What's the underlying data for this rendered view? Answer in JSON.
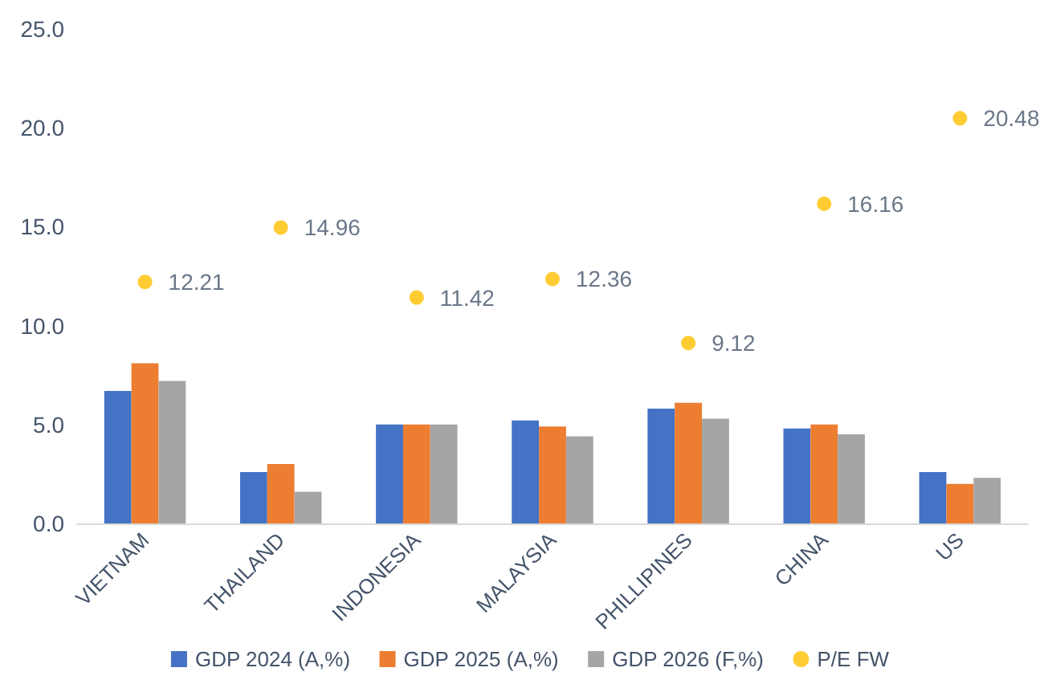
{
  "chart_data": {
    "type": "bar",
    "categories": [
      "VIETNAM",
      "THAILAND",
      "INDONESIA",
      "MALAYSIA",
      "PHILLIPINES",
      "CHINA",
      "US"
    ],
    "series": [
      {
        "name": "GDP 2024 (A,%)",
        "color": "#4472c4",
        "values": [
          6.7,
          2.6,
          5.0,
          5.2,
          5.8,
          4.8,
          2.6
        ]
      },
      {
        "name": "GDP 2025 (A,%)",
        "color": "#ed7d31",
        "values": [
          8.1,
          3.0,
          5.0,
          4.9,
          6.1,
          5.0,
          2.0
        ]
      },
      {
        "name": "GDP 2026 (F,%)",
        "color": "#a5a5a5",
        "values": [
          7.2,
          1.6,
          5.0,
          4.4,
          5.3,
          4.5,
          2.3
        ]
      },
      {
        "name": "P/E FW",
        "type": "scatter",
        "color": "#ffc000",
        "x": [
          "VIETNAM",
          "THAILAND",
          "INDONESIA",
          "MALAYSIA",
          "PHILLIPINES",
          "CHINA",
          "US"
        ],
        "values": [
          12.21,
          14.96,
          11.42,
          12.36,
          9.12,
          16.16,
          20.48
        ],
        "value_labels": [
          "12.21",
          "14.96",
          "11.42",
          "12.36",
          "9.12",
          "16.16",
          "20.48"
        ]
      }
    ],
    "ylim": [
      0,
      25
    ],
    "yticks": [
      {
        "value": 0,
        "label": "0.0"
      },
      {
        "value": 5,
        "label": "5.0"
      },
      {
        "value": 10,
        "label": "10.0"
      },
      {
        "value": 15,
        "label": "15.0"
      },
      {
        "value": 20,
        "label": "20.0"
      },
      {
        "value": 25,
        "label": "25.0"
      }
    ],
    "grid": false,
    "legend": "bottom",
    "marker": "circle"
  }
}
